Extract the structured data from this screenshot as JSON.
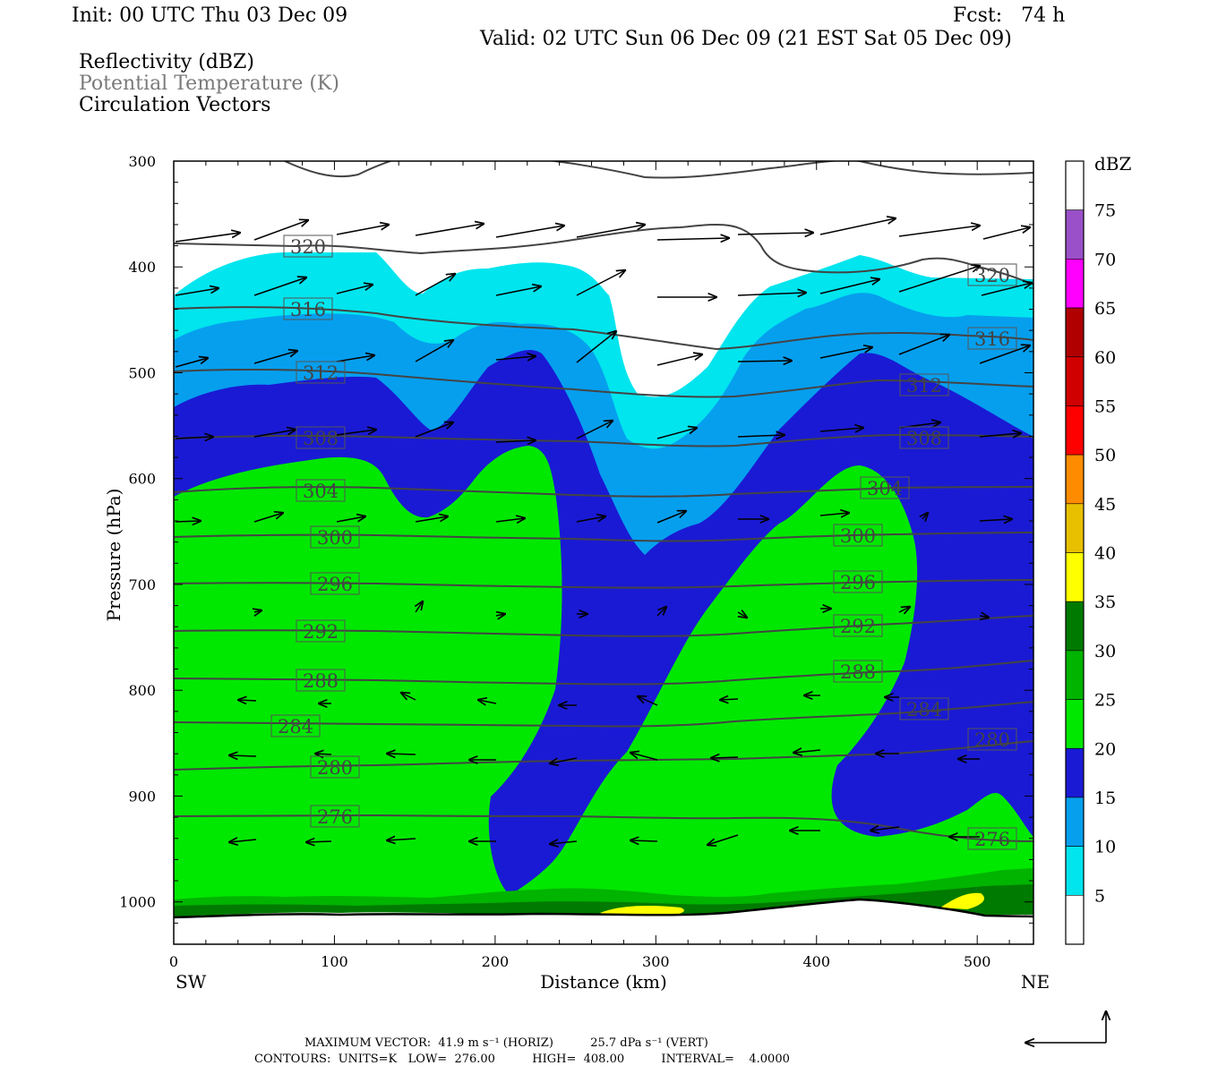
{
  "header": {
    "init": "Init: 00 UTC Thu 03 Dec 09",
    "fcst": "Fcst:   74 h",
    "valid": "Valid: 02 UTC Sun 06 Dec 09 (21 EST Sat 05 Dec 09)",
    "fields": [
      "Reflectivity (dBZ)",
      "Potential Temperature (K)",
      "Circulation Vectors"
    ]
  },
  "footer": {
    "line1": "MAXIMUM VECTOR:  41.9 m s⁻¹ (HORIZ)          25.7 dPa s⁻¹ (VERT)",
    "line2": "CONTOURS:  UNITS=K   LOW=  276.00          HIGH=  408.00          INTERVAL=    4.0000"
  },
  "colors": {
    "white": "#ffffff",
    "cyan": "#00e5ee",
    "lightblue": "#069fee",
    "blue": "#1a1ad4",
    "green": "#00e800",
    "midgreen": "#00b400",
    "darkgreen": "#007a00",
    "yellow": "#ffff00",
    "contour": "#444444"
  },
  "chart_data": {
    "type": "contour",
    "xlabel": "Distance (km)",
    "ylabel": "Pressure (hPa)",
    "xlim": [
      0,
      535
    ],
    "ylim": [
      1040,
      300
    ],
    "x_ticks": [
      "0",
      "100",
      "200",
      "300",
      "400",
      "500"
    ],
    "y_ticks": [
      "300",
      "400",
      "500",
      "600",
      "700",
      "800",
      "900",
      "1000"
    ],
    "x_end_labels": {
      "left": "SW",
      "right": "NE"
    },
    "colorbar": {
      "title": "dBZ",
      "labels": [
        "5",
        "10",
        "15",
        "20",
        "25",
        "30",
        "35",
        "40",
        "45",
        "50",
        "55",
        "60",
        "65",
        "70",
        "75"
      ],
      "colors": [
        "#ffffff",
        "#00e5ee",
        "#069fee",
        "#1a1ad4",
        "#00e800",
        "#00b400",
        "#007a00",
        "#ffff00",
        "#e8c000",
        "#ff8c00",
        "#ff0000",
        "#d00000",
        "#b00000",
        "#ff00ff",
        "#9a50c8",
        "#ffffff"
      ]
    },
    "theta_contour_labels": [
      "320",
      "320",
      "316",
      "316",
      "312",
      "312",
      "308",
      "308",
      "304",
      "304",
      "300",
      "300",
      "296",
      "296",
      "292",
      "292",
      "288",
      "288",
      "284",
      "284",
      "280",
      "280",
      "276",
      "276"
    ]
  }
}
